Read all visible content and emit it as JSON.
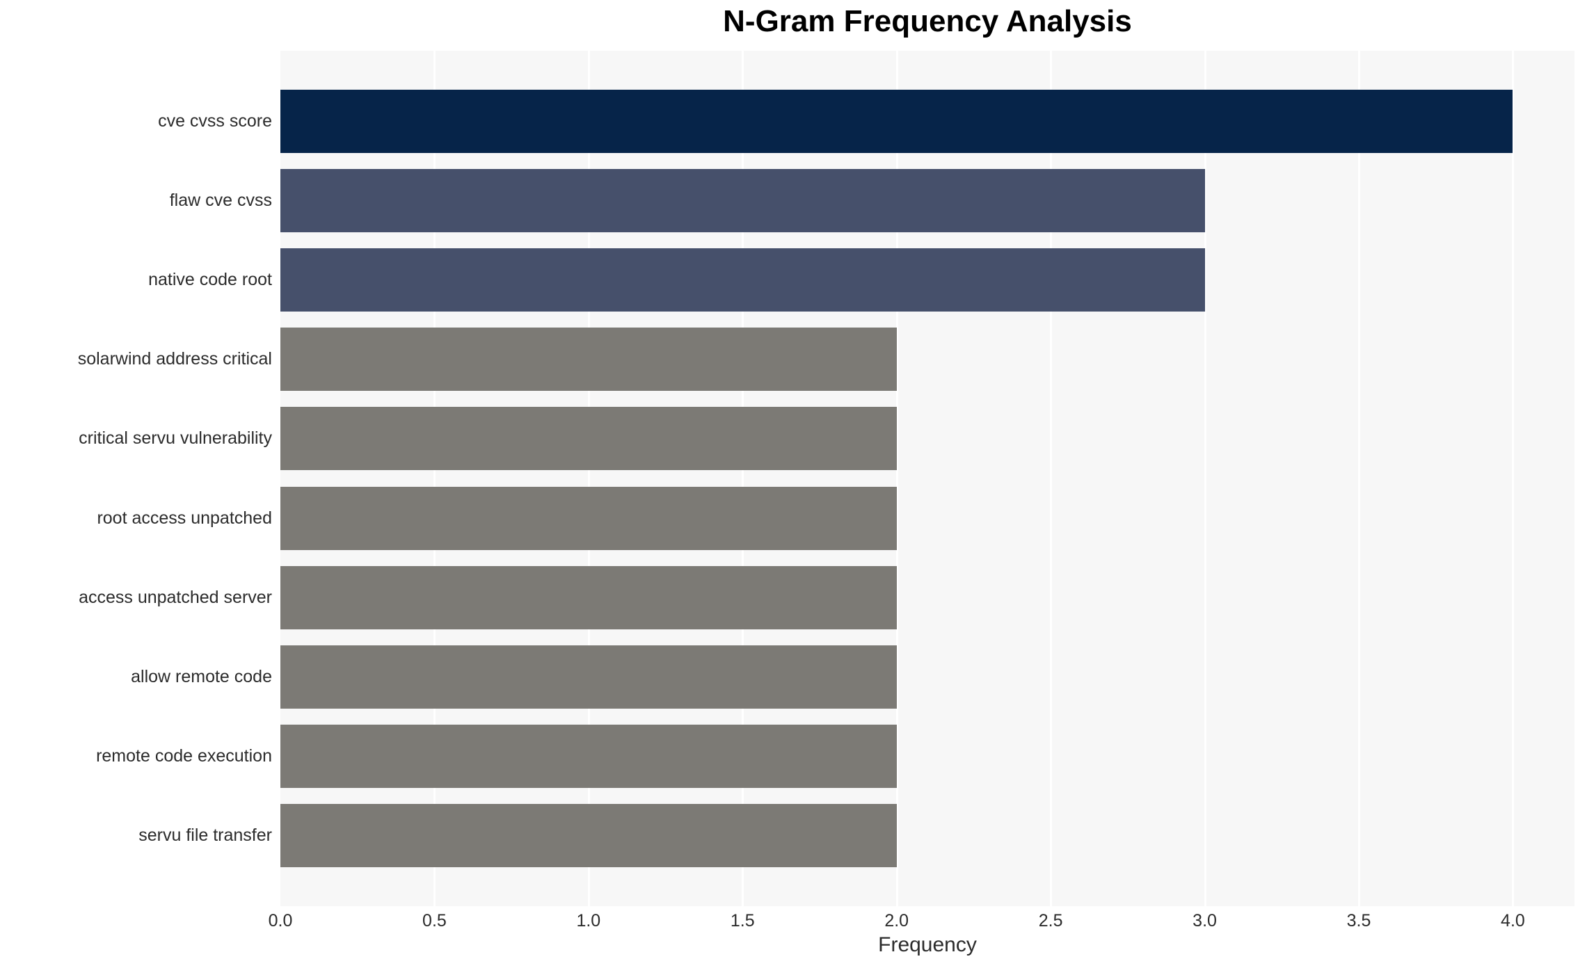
{
  "chart_data": {
    "type": "bar",
    "orientation": "horizontal",
    "title": "N-Gram Frequency Analysis",
    "xlabel": "Frequency",
    "ylabel": "",
    "categories": [
      "cve cvss score",
      "flaw cve cvss",
      "native code root",
      "solarwind address critical",
      "critical servu vulnerability",
      "root access unpatched",
      "access unpatched server",
      "allow remote code",
      "remote code execution",
      "servu file transfer"
    ],
    "values": [
      4.0,
      3.0,
      3.0,
      2.0,
      2.0,
      2.0,
      2.0,
      2.0,
      2.0,
      2.0
    ],
    "bar_colors": [
      "#062449",
      "#46506b",
      "#46506b",
      "#7c7a75",
      "#7c7a75",
      "#7c7a75",
      "#7c7a75",
      "#7c7a75",
      "#7c7a75",
      "#7c7a75"
    ],
    "xlim": [
      0,
      4.2
    ],
    "xticks": [
      "0.0",
      "0.5",
      "1.0",
      "1.5",
      "2.0",
      "2.5",
      "3.0",
      "3.5",
      "4.0"
    ],
    "grid": true,
    "legend": "none",
    "plot_background": "#f7f7f7",
    "grid_color": "#ffffff",
    "text_color": "#2b2b2b",
    "title_color": "#000000"
  }
}
